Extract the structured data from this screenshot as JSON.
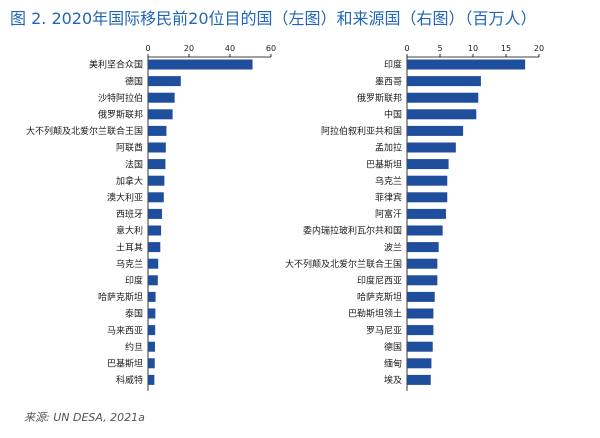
{
  "title": "图 2. 2020年国际移民前20位目的国（左图）和来源国（右图）（百万人）",
  "source": "来源: UN DESA, 2021a",
  "colors": {
    "bar": "#1f4e9c",
    "title": "#1f66b5",
    "axis": "#000000"
  },
  "chart_data": [
    {
      "type": "bar",
      "orientation": "horizontal",
      "title": "",
      "xlim": [
        0,
        60
      ],
      "xticks": [
        0,
        20,
        40,
        60
      ],
      "categories": [
        "美利坚合众国",
        "德国",
        "沙特阿拉伯",
        "俄罗斯联邦",
        "大不列颠及北爱尔兰联合王国",
        "阿联酋",
        "法国",
        "加拿大",
        "澳大利亚",
        "西班牙",
        "意大利",
        "土耳其",
        "乌克兰",
        "印度",
        "哈萨克斯坦",
        "泰国",
        "马来西亚",
        "约旦",
        "巴基斯坦",
        "科威特"
      ],
      "values": [
        51,
        16,
        13,
        12,
        9,
        8.7,
        8.5,
        8,
        7.7,
        6.8,
        6.4,
        6,
        5,
        4.8,
        3.7,
        3.6,
        3.5,
        3.4,
        3.3,
        3.1
      ]
    },
    {
      "type": "bar",
      "orientation": "horizontal",
      "title": "",
      "xlim": [
        0,
        20
      ],
      "xticks": [
        0,
        5,
        10,
        15,
        20
      ],
      "categories": [
        "印度",
        "墨西哥",
        "俄罗斯联邦",
        "中国",
        "阿拉伯叙利亚共和国",
        "孟加拉",
        "巴基斯坦",
        "乌克兰",
        "菲律宾",
        "阿富汗",
        "委内瑞拉玻利瓦尔共和国",
        "波兰",
        "大不列颠及北爱尔兰联合王国",
        "印度尼西亚",
        "哈萨克斯坦",
        "巴勒斯坦领土",
        "罗马尼亚",
        "德国",
        "缅甸",
        "埃及"
      ],
      "values": [
        17.9,
        11.2,
        10.8,
        10.5,
        8.5,
        7.4,
        6.3,
        6.1,
        6.1,
        5.9,
        5.4,
        4.8,
        4.6,
        4.6,
        4.2,
        4.0,
        4.0,
        3.9,
        3.7,
        3.6
      ]
    }
  ]
}
